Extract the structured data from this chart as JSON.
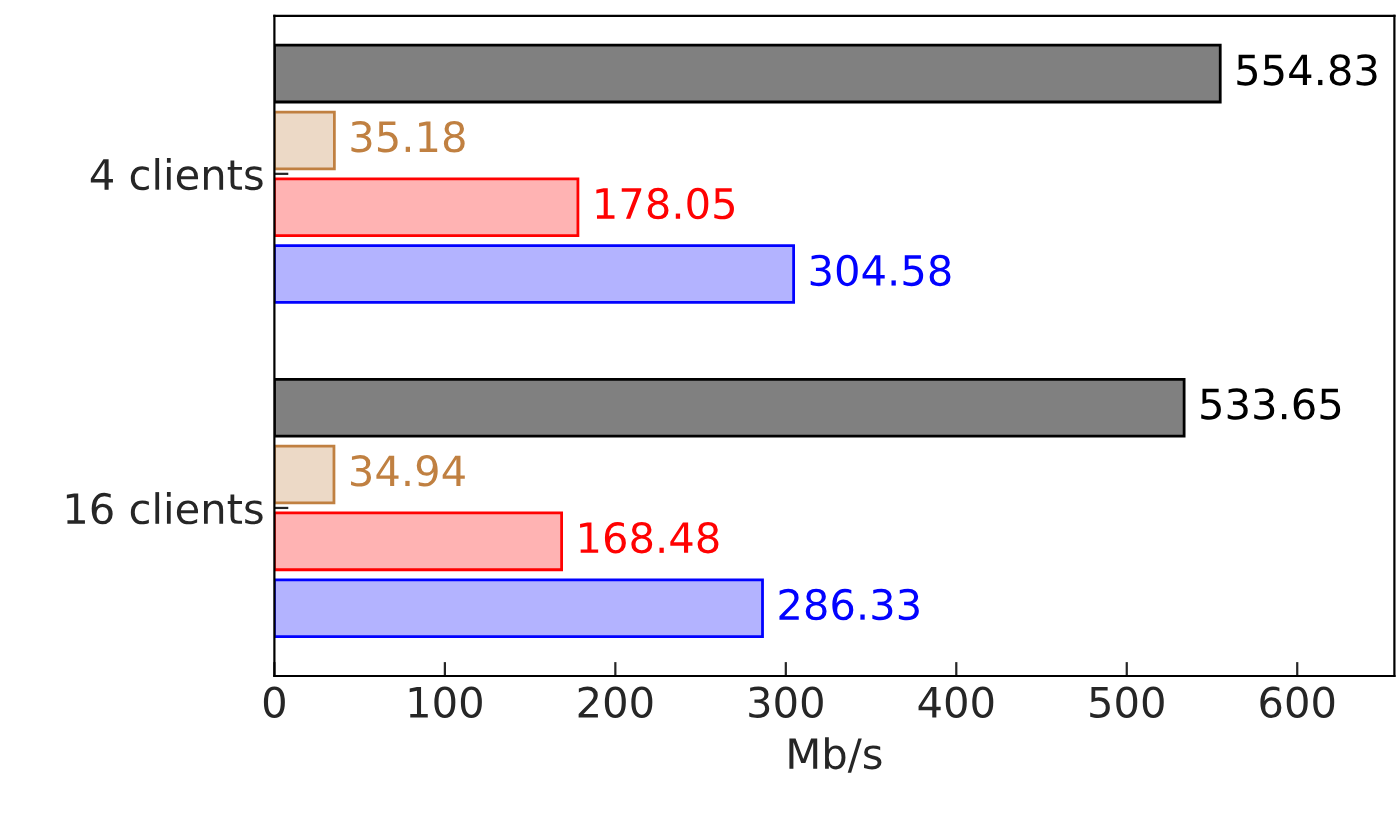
{
  "chart_data": {
    "type": "bar",
    "orientation": "horizontal",
    "xlabel": "Mb/s",
    "categories": [
      "4 clients",
      "16 clients"
    ],
    "series": [
      {
        "color": "#808080",
        "values": [
          554.83,
          533.65
        ]
      },
      {
        "color": "#ecd9c6",
        "values": [
          35.18,
          34.94
        ]
      },
      {
        "color": "#ffb3b3",
        "values": [
          178.05,
          168.48
        ]
      },
      {
        "color": "#b3b3ff",
        "values": [
          304.58,
          286.33
        ]
      }
    ],
    "xlim": [
      0,
      657
    ],
    "xticks": [
      0,
      100,
      200,
      300,
      400,
      500,
      600
    ],
    "data_labels": true,
    "grid": false
  }
}
